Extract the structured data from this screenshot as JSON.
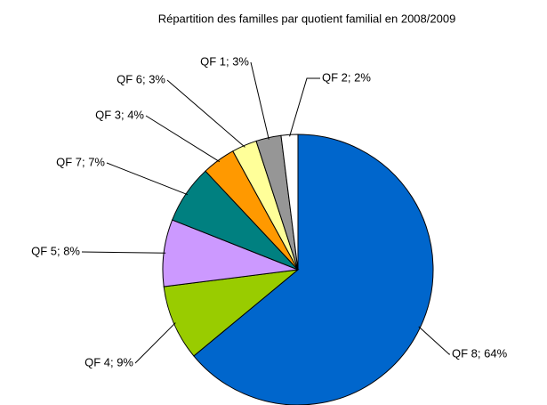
{
  "chart_data": {
    "type": "pie",
    "title": "Répartition des familles par quotient familial en 2008/2009",
    "values": [
      64,
      9,
      8,
      7,
      4,
      3,
      3,
      2
    ],
    "value_labels": [
      "QF 8; 64%",
      "QF 4; 9%",
      "QF 5; 8%",
      "QF 7; 7%",
      "QF 3; 4%",
      "QF 6; 3%",
      "QF 1; 3%",
      "QF 2; 2%"
    ],
    "colors": [
      "#0066cc",
      "#99cc00",
      "#cc99ff",
      "#008080",
      "#ff9900",
      "#ffff99",
      "#969696",
      "#ffffff"
    ]
  }
}
